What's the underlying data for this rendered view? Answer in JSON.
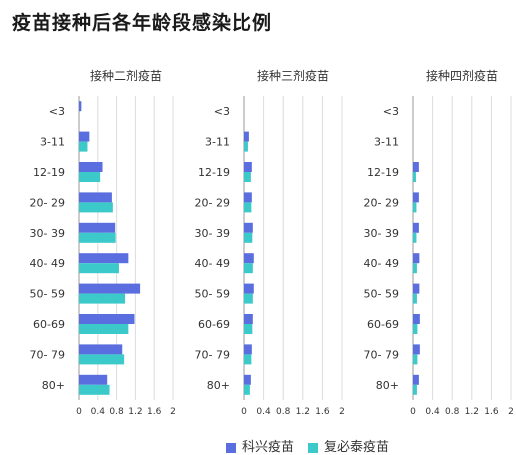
{
  "title": "疫苗接种后各年龄段感染比例",
  "colors": {
    "kexing": "#5b6ee0",
    "fubitai": "#3cc9c9",
    "grid": "#dcdcdc",
    "axis": "#999999",
    "text": "#333333"
  },
  "legend": [
    {
      "name": "科兴疫苗",
      "color": "#5b6ee0"
    },
    {
      "name": "复必泰疫苗",
      "color": "#3cc9c9"
    }
  ],
  "chart_data": [
    {
      "type": "bar",
      "orientation": "horizontal",
      "title": "接种二剂疫苗",
      "categories": [
        "<3",
        "3-11",
        "12-19",
        "20- 29",
        "30- 39",
        "40- 49",
        "50- 59",
        "60-69",
        "70- 79",
        "80+"
      ],
      "series": [
        {
          "name": "科兴疫苗",
          "values": [
            0.05,
            0.22,
            0.5,
            0.7,
            0.77,
            1.05,
            1.3,
            1.18,
            0.92,
            0.6
          ]
        },
        {
          "name": "复必泰疫苗",
          "values": [
            0.0,
            0.18,
            0.45,
            0.72,
            0.78,
            0.85,
            0.98,
            1.05,
            0.96,
            0.65
          ]
        }
      ],
      "xlim": [
        0,
        2
      ],
      "xticks": [
        "0",
        "0.4",
        "0.8",
        "1.2",
        "1.6",
        "2"
      ]
    },
    {
      "type": "bar",
      "orientation": "horizontal",
      "title": "接种三剂疫苗",
      "categories": [
        "<3",
        "3-11",
        "12-19",
        "20- 29",
        "30- 39",
        "40- 49",
        "50- 59",
        "60-69",
        "70- 79",
        "80+"
      ],
      "series": [
        {
          "name": "科兴疫苗",
          "values": [
            0.0,
            0.1,
            0.16,
            0.16,
            0.18,
            0.2,
            0.2,
            0.18,
            0.16,
            0.14
          ]
        },
        {
          "name": "复必泰疫苗",
          "values": [
            0.0,
            0.08,
            0.14,
            0.15,
            0.17,
            0.18,
            0.18,
            0.17,
            0.15,
            0.12
          ]
        }
      ],
      "xlim": [
        0,
        2
      ],
      "xticks": [
        "0",
        "0.4",
        "0.8",
        "1.2",
        "1.6",
        "2"
      ]
    },
    {
      "type": "bar",
      "orientation": "horizontal",
      "title": "接种四剂疫苗",
      "categories": [
        "<3",
        "3-11",
        "12-19",
        "20- 29",
        "30- 39",
        "40- 49",
        "50- 59",
        "60-69",
        "70- 79",
        "80+"
      ],
      "series": [
        {
          "name": "科兴疫苗",
          "values": [
            0.0,
            0.0,
            0.12,
            0.12,
            0.12,
            0.13,
            0.13,
            0.14,
            0.14,
            0.12
          ]
        },
        {
          "name": "复必泰疫苗",
          "values": [
            0.0,
            0.0,
            0.06,
            0.07,
            0.07,
            0.08,
            0.08,
            0.09,
            0.09,
            0.08
          ]
        }
      ],
      "xlim": [
        0,
        2
      ],
      "xticks": [
        "0",
        "0.4",
        "0.8",
        "1.2",
        "1.6",
        "2"
      ]
    }
  ]
}
